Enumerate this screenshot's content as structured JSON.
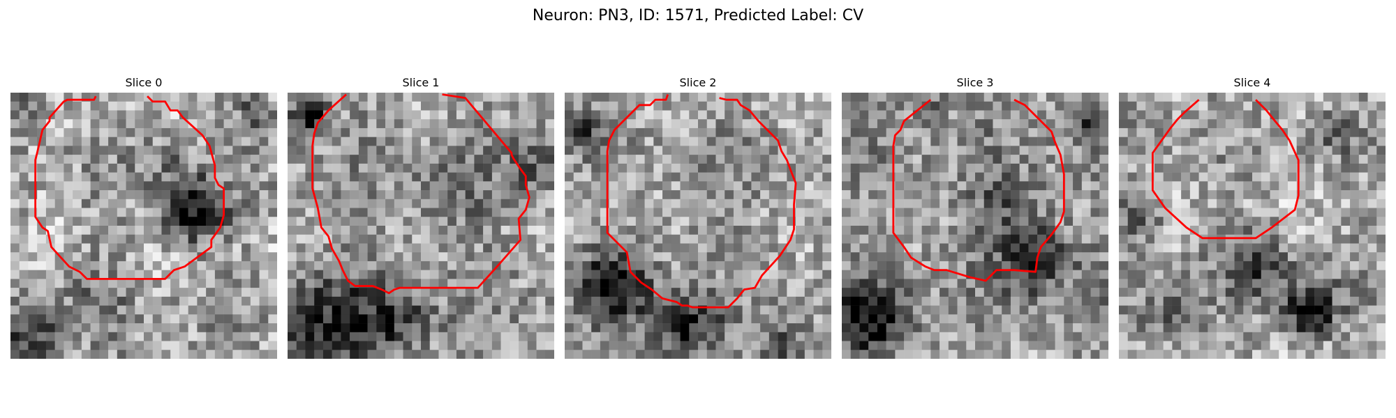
{
  "figure": {
    "title": "Neuron: PN3, ID: 1571, Predicted Label: CV",
    "contour_color": "#ff0000",
    "colormap": "grayscale"
  },
  "panels": [
    {
      "title": "Slice 0"
    },
    {
      "title": "Slice 1"
    },
    {
      "title": "Slice 2"
    },
    {
      "title": "Slice 3"
    },
    {
      "title": "Slice 4"
    }
  ]
}
